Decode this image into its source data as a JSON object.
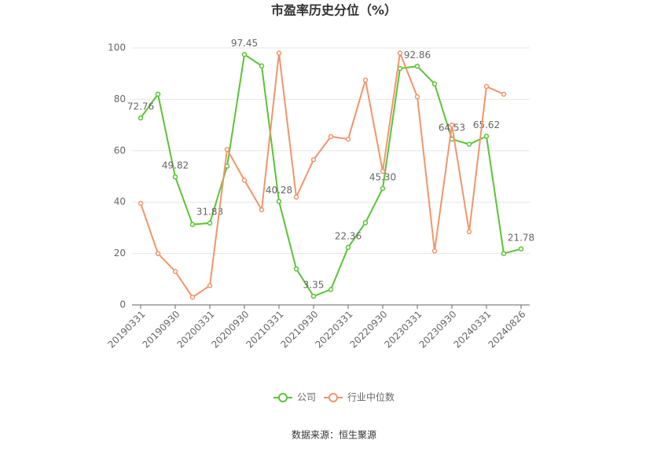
{
  "chart_data": {
    "type": "line",
    "title": "市盈率历史分位（%）",
    "categories": [
      "20190331",
      null,
      "20190930",
      null,
      "20200331",
      null,
      "20200930",
      null,
      "20210331",
      null,
      "20210930",
      null,
      "20220331",
      null,
      "20220930",
      null,
      "20230331",
      null,
      "20230930",
      null,
      "20240331",
      null,
      "20240826"
    ],
    "series": [
      {
        "name": "公司",
        "color": "#5bc336",
        "values": [
          72.76,
          82,
          49.82,
          31.3,
          31.83,
          54,
          97.45,
          93,
          40.28,
          14,
          3.35,
          6,
          22.36,
          32,
          45.3,
          92,
          92.86,
          86,
          64.53,
          62.5,
          65.62,
          20,
          21.78
        ],
        "value_labels": [
          "72.76",
          null,
          "49.82",
          null,
          "31.83",
          null,
          "97.45",
          null,
          "40.28",
          null,
          "3.35",
          null,
          "22.36",
          null,
          "45.30",
          null,
          "92.86",
          null,
          "64.53",
          null,
          "65.62",
          null,
          "21.78"
        ]
      },
      {
        "name": "行业中位数",
        "color": "#f0956a",
        "values": [
          39.5,
          20,
          13,
          3,
          7.5,
          60.5,
          48.5,
          37,
          98,
          42,
          56.5,
          65.5,
          64.5,
          87.5,
          52,
          98,
          81,
          21,
          70,
          28.5,
          85,
          82,
          null
        ]
      }
    ],
    "ylim": [
      0,
      100
    ],
    "yticks": [
      0,
      20,
      40,
      60,
      80,
      100
    ],
    "grid": true,
    "legend": "bottom",
    "source": "数据来源：恒生聚源"
  }
}
